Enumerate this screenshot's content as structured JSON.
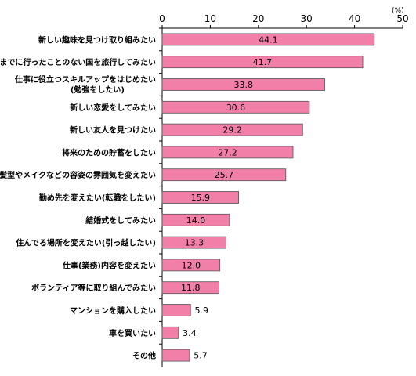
{
  "chart_data": {
    "type": "bar",
    "orientation": "horizontal",
    "unit": "(%)",
    "xlim": [
      0,
      50
    ],
    "ticks": [
      "0",
      "10",
      "20",
      "30",
      "40",
      "50"
    ],
    "categories": [
      [
        "新しい趣味を見つけ取り組みたい"
      ],
      [
        "今までに行ったことのない国を旅行してみたい"
      ],
      [
        "仕事に役立つスキルアップをはじめたい",
        "(勉強をしたい)"
      ],
      [
        "新しい恋愛をしてみたい"
      ],
      [
        "新しい友人を見つけたい"
      ],
      [
        "将来のための貯蓄をしたい"
      ],
      [
        "髪型やメイクなどの容姿の雰囲気を変えたい"
      ],
      [
        "勤め先を変えたい(転職をしたい)"
      ],
      [
        "結婚式をしてみたい"
      ],
      [
        "住んでる場所を変えたい(引っ越したい)"
      ],
      [
        "仕事(業務)内容を変えたい"
      ],
      [
        "ボランティア等に取り組んでみたい"
      ],
      [
        "マンションを購入したい"
      ],
      [
        "車を買いたい"
      ],
      [
        "その他"
      ]
    ],
    "values": [
      44.1,
      41.7,
      33.8,
      30.6,
      29.2,
      27.2,
      25.7,
      15.9,
      14.0,
      13.3,
      12.0,
      11.8,
      5.9,
      3.4,
      5.7
    ],
    "value_labels": [
      "44.1",
      "41.7",
      "33.8",
      "30.6",
      "29.2",
      "27.2",
      "25.7",
      "15.9",
      "14.0",
      "13.3",
      "12.0",
      "11.8",
      "5.9",
      "3.4",
      "5.7"
    ],
    "colors": {
      "bar": "#f27fa8",
      "bar_stroke": "#555555",
      "axis": "#000000"
    },
    "grid": false
  }
}
